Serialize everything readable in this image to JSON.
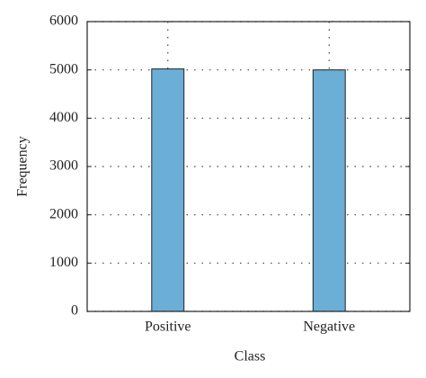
{
  "chart_data": {
    "type": "bar",
    "categories": [
      "Positive",
      "Negative"
    ],
    "values": [
      5020,
      5000
    ],
    "color": "#6baed6",
    "ylim": [
      0,
      6000
    ],
    "yticks": [
      0,
      1000,
      2000,
      3000,
      4000,
      5000,
      6000
    ],
    "grid": true,
    "xlabel": "Class",
    "ylabel": "Frequency"
  }
}
